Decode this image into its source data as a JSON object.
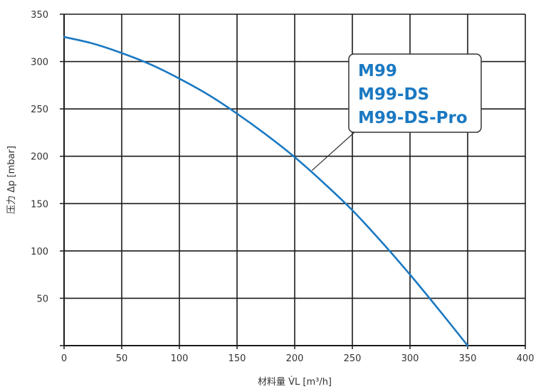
{
  "chart_data": {
    "type": "line",
    "title": "",
    "xlabel": "材料量 V̇L [m³/h]",
    "ylabel": "压力 Δp [mbar]",
    "xlim": [
      0,
      400
    ],
    "ylim": [
      0,
      350
    ],
    "x_ticks": [
      0,
      50,
      100,
      150,
      200,
      250,
      300,
      350,
      400
    ],
    "y_ticks": [
      0,
      50,
      100,
      150,
      200,
      250,
      300,
      350
    ],
    "y_tick_labels_shown": [
      50,
      100,
      150,
      200,
      250,
      300,
      350
    ],
    "grid": true,
    "series": [
      {
        "color": "#1b79c2",
        "x": [
          0,
          25,
          50,
          75,
          100,
          125,
          150,
          175,
          200,
          225,
          250,
          275,
          300,
          325,
          350
        ],
        "y": [
          326,
          319,
          309,
          297,
          282,
          265,
          245,
          223,
          199,
          172,
          143,
          110,
          75,
          38,
          0
        ]
      }
    ],
    "annotation": {
      "lines": [
        "M99",
        "M99-DS",
        "M99-DS-Pro"
      ],
      "color": "#1b79c2",
      "points_to": [
        215,
        185
      ],
      "placement": "top-right"
    }
  }
}
